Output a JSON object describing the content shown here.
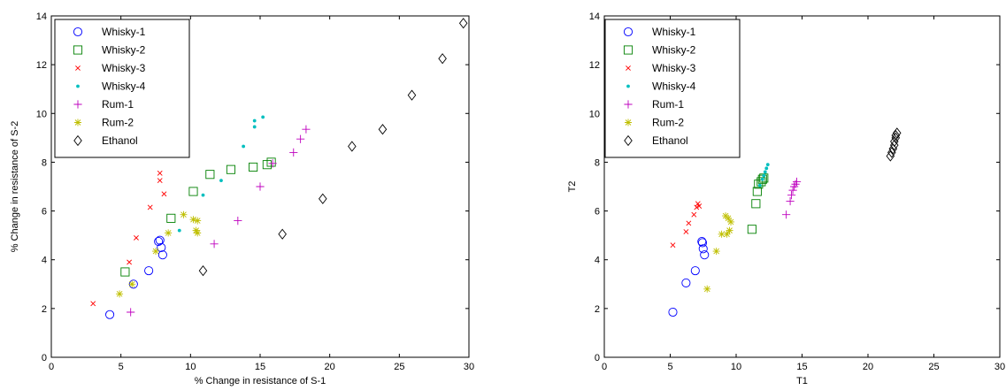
{
  "chart_data": [
    {
      "type": "scatter",
      "xlabel": "% Change in resistance of S-1",
      "ylabel": "% Change in resistance of S-2",
      "xlim": [
        0,
        30
      ],
      "ylim": [
        0,
        14
      ],
      "xticks": [
        "0",
        "5",
        "10",
        "15",
        "20",
        "25",
        "30"
      ],
      "yticks": [
        "0",
        "2",
        "4",
        "6",
        "8",
        "10",
        "12",
        "14"
      ],
      "grid": false,
      "legend_position": "top-left",
      "series": [
        {
          "name": "Whisky-1",
          "marker": "circle",
          "color": "#0000ff",
          "points": [
            [
              4.2,
              1.75
            ],
            [
              5.9,
              3.0
            ],
            [
              7.0,
              3.55
            ],
            [
              7.8,
              4.8
            ],
            [
              7.7,
              4.75
            ],
            [
              7.9,
              4.5
            ],
            [
              8.0,
              4.2
            ]
          ]
        },
        {
          "name": "Whisky-2",
          "marker": "square",
          "color": "#008000",
          "points": [
            [
              5.3,
              3.5
            ],
            [
              8.6,
              5.7
            ],
            [
              10.2,
              6.8
            ],
            [
              11.4,
              7.5
            ],
            [
              12.9,
              7.7
            ],
            [
              14.5,
              7.8
            ],
            [
              15.5,
              7.9
            ],
            [
              15.8,
              8.0
            ]
          ]
        },
        {
          "name": "Whisky-3",
          "marker": "x",
          "color": "#ff0000",
          "points": [
            [
              3.0,
              2.2
            ],
            [
              5.6,
              3.9
            ],
            [
              6.1,
              4.9
            ],
            [
              7.1,
              6.15
            ],
            [
              7.8,
              7.55
            ],
            [
              7.8,
              7.25
            ],
            [
              8.1,
              6.7
            ]
          ]
        },
        {
          "name": "Whisky-4",
          "marker": "dot",
          "color": "#00bfbf",
          "points": [
            [
              9.2,
              5.2
            ],
            [
              10.9,
              6.65
            ],
            [
              12.2,
              7.25
            ],
            [
              13.8,
              8.65
            ],
            [
              14.6,
              9.7
            ],
            [
              14.6,
              9.45
            ],
            [
              15.2,
              9.85
            ]
          ]
        },
        {
          "name": "Rum-1",
          "marker": "plus",
          "color": "#bf00bf",
          "points": [
            [
              5.7,
              1.85
            ],
            [
              11.7,
              4.65
            ],
            [
              13.4,
              5.6
            ],
            [
              15.0,
              7.0
            ],
            [
              15.9,
              7.95
            ],
            [
              17.4,
              8.4
            ],
            [
              17.9,
              8.95
            ],
            [
              18.3,
              9.35
            ]
          ]
        },
        {
          "name": "Rum-2",
          "marker": "star",
          "color": "#bfbf00",
          "points": [
            [
              4.9,
              2.6
            ],
            [
              5.8,
              3.0
            ],
            [
              7.5,
              4.35
            ],
            [
              8.4,
              5.1
            ],
            [
              9.5,
              5.85
            ],
            [
              10.2,
              5.65
            ],
            [
              10.5,
              5.6
            ],
            [
              10.4,
              5.2
            ],
            [
              10.5,
              5.1
            ]
          ]
        },
        {
          "name": "Ethanol",
          "marker": "diamond",
          "color": "#000000",
          "points": [
            [
              10.9,
              3.55
            ],
            [
              16.6,
              5.05
            ],
            [
              19.5,
              6.5
            ],
            [
              21.6,
              8.65
            ],
            [
              23.8,
              9.35
            ],
            [
              25.9,
              10.75
            ],
            [
              28.1,
              12.25
            ],
            [
              29.6,
              13.7
            ]
          ]
        }
      ]
    },
    {
      "type": "scatter",
      "xlabel": "T1",
      "ylabel": "T2",
      "xlim": [
        0,
        30
      ],
      "ylim": [
        0,
        14
      ],
      "xticks": [
        "0",
        "5",
        "10",
        "15",
        "20",
        "25",
        "30"
      ],
      "yticks": [
        "0",
        "2",
        "4",
        "6",
        "8",
        "10",
        "12",
        "14"
      ],
      "grid": false,
      "legend_position": "top-left",
      "series": [
        {
          "name": "Whisky-1",
          "marker": "circle",
          "color": "#0000ff",
          "points": [
            [
              5.2,
              1.85
            ],
            [
              6.2,
              3.05
            ],
            [
              6.9,
              3.55
            ],
            [
              7.4,
              4.75
            ],
            [
              7.45,
              4.7
            ],
            [
              7.5,
              4.45
            ],
            [
              7.6,
              4.2
            ]
          ]
        },
        {
          "name": "Whisky-2",
          "marker": "square",
          "color": "#008000",
          "points": [
            [
              11.2,
              5.25
            ],
            [
              11.5,
              6.3
            ],
            [
              11.6,
              6.8
            ],
            [
              11.7,
              7.1
            ],
            [
              11.9,
              7.2
            ],
            [
              12.0,
              7.3
            ],
            [
              12.1,
              7.35
            ]
          ]
        },
        {
          "name": "Whisky-3",
          "marker": "x",
          "color": "#ff0000",
          "points": [
            [
              5.2,
              4.6
            ],
            [
              6.2,
              5.15
            ],
            [
              6.4,
              5.5
            ],
            [
              6.8,
              5.85
            ],
            [
              7.0,
              6.15
            ],
            [
              7.1,
              6.3
            ],
            [
              7.2,
              6.2
            ]
          ]
        },
        {
          "name": "Whisky-4",
          "marker": "dot",
          "color": "#00bfbf",
          "points": [
            [
              11.8,
              7.05
            ],
            [
              12.0,
              7.3
            ],
            [
              12.1,
              7.45
            ],
            [
              12.2,
              7.6
            ],
            [
              12.3,
              7.75
            ],
            [
              12.4,
              7.9
            ]
          ]
        },
        {
          "name": "Rum-1",
          "marker": "plus",
          "color": "#bf00bf",
          "points": [
            [
              13.8,
              5.85
            ],
            [
              14.1,
              6.4
            ],
            [
              14.2,
              6.65
            ],
            [
              14.3,
              6.85
            ],
            [
              14.4,
              7.0
            ],
            [
              14.5,
              7.1
            ],
            [
              14.6,
              7.2
            ]
          ]
        },
        {
          "name": "Rum-2",
          "marker": "star",
          "color": "#bfbf00",
          "points": [
            [
              7.8,
              2.8
            ],
            [
              8.5,
              4.35
            ],
            [
              8.9,
              5.05
            ],
            [
              9.3,
              5.05
            ],
            [
              9.5,
              5.2
            ],
            [
              9.6,
              5.55
            ],
            [
              9.2,
              5.8
            ],
            [
              9.4,
              5.7
            ]
          ]
        },
        {
          "name": "Ethanol",
          "marker": "diamond",
          "color": "#000000",
          "points": [
            [
              21.7,
              8.25
            ],
            [
              21.8,
              8.4
            ],
            [
              21.9,
              8.55
            ],
            [
              22.0,
              8.7
            ],
            [
              22.0,
              8.85
            ],
            [
              22.1,
              9.0
            ],
            [
              22.1,
              9.1
            ],
            [
              22.2,
              9.2
            ]
          ]
        }
      ]
    }
  ]
}
